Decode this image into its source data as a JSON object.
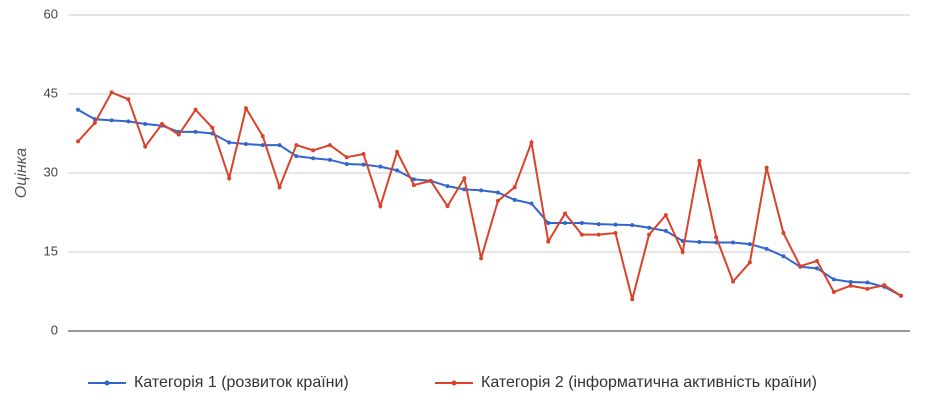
{
  "chart_data": {
    "type": "line",
    "y_label": "Оцінка",
    "categories": [
      null,
      null,
      null,
      null,
      null,
      null,
      null,
      null,
      null,
      null,
      null,
      null,
      null,
      null,
      null,
      null,
      null,
      null,
      null,
      null,
      null,
      null,
      null,
      null,
      null,
      null,
      null,
      null,
      null,
      null,
      null,
      null,
      null,
      null,
      null,
      null,
      null,
      null,
      null,
      null,
      null,
      null,
      null,
      null,
      null,
      null,
      null,
      null,
      null,
      null
    ],
    "series": [
      {
        "name": "Категорія 1 (розвиток країни)",
        "color": "#3366cc",
        "values": [
          42,
          40.2,
          40,
          39.8,
          39.3,
          39,
          37.8,
          37.8,
          37.5,
          35.8,
          35.5,
          35.3,
          35.3,
          33.2,
          32.8,
          32.5,
          31.7,
          31.6,
          31.2,
          30.5,
          28.8,
          28.5,
          27.5,
          26.9,
          26.7,
          26.3,
          24.9,
          24.2,
          20.5,
          20.5,
          20.5,
          20.3,
          20.2,
          20.1,
          19.6,
          19,
          17.1,
          16.9,
          16.8,
          16.8,
          16.5,
          15.6,
          14.2,
          12.2,
          11.9,
          9.8,
          9.3,
          9.2,
          8.4,
          6.7
        ]
      },
      {
        "name": "Категорія 2 (інформатична активність країни)",
        "color": "#d9432a",
        "values": [
          36,
          39.5,
          45.3,
          44,
          35,
          39.3,
          37.3,
          42,
          38.6,
          29,
          42.3,
          37,
          27.3,
          35.3,
          34.3,
          35.3,
          33,
          33.6,
          23.7,
          34,
          27.7,
          28.5,
          23.7,
          29,
          13.8,
          24.7,
          27.3,
          35.8,
          17,
          22.3,
          18.3,
          18.3,
          18.6,
          6,
          18.3,
          22,
          15,
          32.3,
          17.8,
          9.4,
          13,
          31,
          18.6,
          12.3,
          13.3,
          7.4,
          8.6,
          8,
          8.7,
          6.7
        ]
      }
    ],
    "ylim": [
      0,
      60
    ],
    "yticks": [
      0,
      15,
      30,
      45,
      60
    ],
    "grid": true,
    "legend": "bottom"
  }
}
